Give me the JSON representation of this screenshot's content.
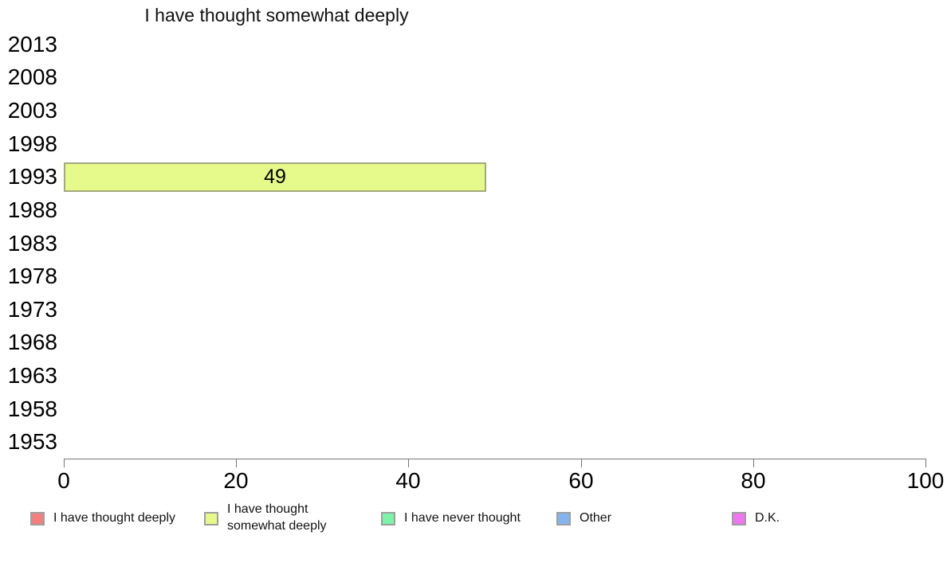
{
  "chart_data": {
    "type": "bar",
    "orientation": "horizontal",
    "title": "I have thought somewhat deeply",
    "categories": [
      "2013",
      "2008",
      "2003",
      "1998",
      "1993",
      "1988",
      "1983",
      "1978",
      "1973",
      "1968",
      "1963",
      "1958",
      "1953"
    ],
    "xlim": [
      0,
      100
    ],
    "x_ticks": [
      0,
      20,
      40,
      60,
      80,
      100
    ],
    "grid": false,
    "legend_position": "bottom",
    "axis_color": "#757575",
    "bar_border_color": "#a3a87b",
    "swatch_border_color": "#9e9e9e",
    "series": [
      {
        "name": "I have thought deeply",
        "color": "#f47f7f",
        "values": [
          null,
          null,
          null,
          null,
          null,
          null,
          null,
          null,
          null,
          null,
          null,
          null,
          null
        ]
      },
      {
        "name": "I have thought somewhat deeply",
        "color": "#e6fa8c",
        "values": [
          null,
          null,
          null,
          null,
          49,
          null,
          null,
          null,
          null,
          null,
          null,
          null,
          null
        ]
      },
      {
        "name": "I have never thought",
        "color": "#7df2a8",
        "values": [
          null,
          null,
          null,
          null,
          null,
          null,
          null,
          null,
          null,
          null,
          null,
          null,
          null
        ]
      },
      {
        "name": "Other",
        "color": "#84b4f0",
        "values": [
          null,
          null,
          null,
          null,
          null,
          null,
          null,
          null,
          null,
          null,
          null,
          null,
          null
        ]
      },
      {
        "name": "D.K.",
        "color": "#ec77ee",
        "values": [
          null,
          null,
          null,
          null,
          null,
          null,
          null,
          null,
          null,
          null,
          null,
          null,
          null
        ]
      }
    ]
  }
}
